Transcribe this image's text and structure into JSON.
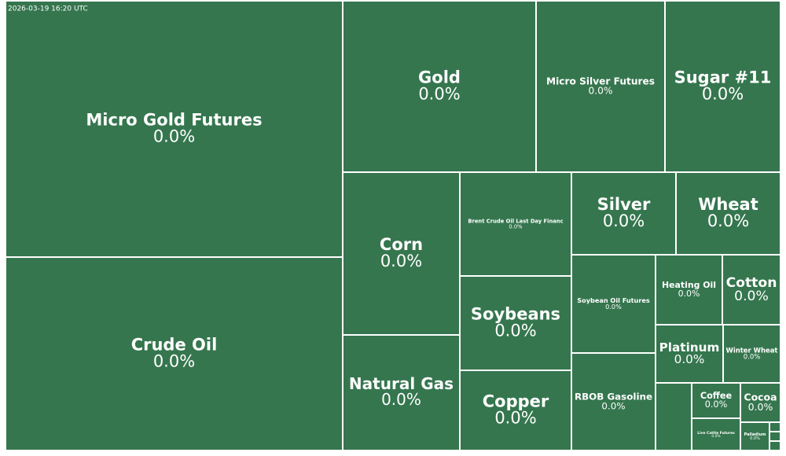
{
  "chart_data": {
    "type": "treemap",
    "timestamp": "2026-03-19 16:20 UTC",
    "color": "#35764e",
    "categories": [
      "Micro Gold Futures",
      "Crude Oil",
      "Gold",
      "Micro Silver Futures",
      "Sugar #11",
      "Corn",
      "Natural Gas",
      "Brent Crude Oil Last Day Financ",
      "Soybeans",
      "Copper",
      "Silver",
      "Wheat",
      "Soybean Oil Futures",
      "RBOB Gasoline",
      "Heating Oil",
      "Cotton",
      "Platinum",
      "Winter Wheat",
      null,
      "Coffee",
      "Live Cattle Futures",
      "Cocoa",
      "Palladium",
      null,
      null,
      null
    ],
    "values": [
      139854,
      105534,
      53628,
      35752,
      32046,
      30843,
      21903,
      18744,
      17040,
      14484,
      13965,
      13965,
      13375,
      13268,
      7565,
      6586,
      6364,
      5402,
      3956,
      2790,
      2542,
      2550,
      1332,
      168,
      168,
      168
    ],
    "changes": [
      0.0,
      0.0,
      0.0,
      0.0,
      0.0,
      0.0,
      0.0,
      0.0,
      0.0,
      0.0,
      0.0,
      0.0,
      0.0,
      0.0,
      0.0,
      0.0,
      0.0,
      0.0,
      null,
      0.0,
      0.0,
      0.0,
      0.0,
      null,
      null,
      null
    ],
    "change_labels": [
      "0.0%",
      "0.0%",
      "0.0%",
      "0.0%",
      "0.0%",
      "0.0%",
      "0.0%",
      "0.0%",
      "0.0%",
      "0.0%",
      "0.0%",
      "0.0%",
      "0.0%",
      "0.0%",
      "0.0%",
      "0.0%",
      "0.0%",
      "0.0%",
      null,
      "0.0%",
      "0.0%",
      "0.0%",
      "0.0%",
      null,
      null,
      null
    ]
  }
}
